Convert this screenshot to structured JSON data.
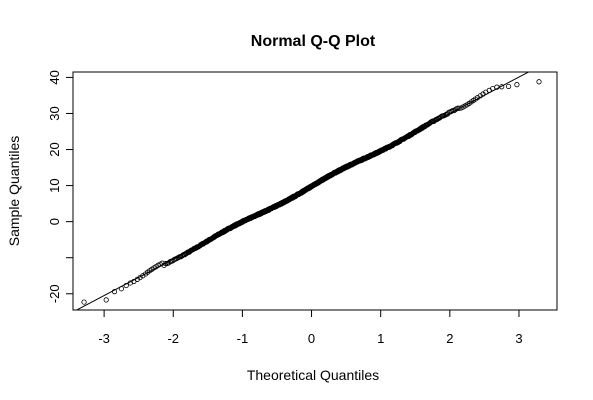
{
  "chart_data": {
    "type": "scatter",
    "title": "Normal Q-Q Plot",
    "xlabel": "Theoretical Quantiles",
    "ylabel": "Sample Quantiles",
    "xlim": [
      -3.45,
      3.55
    ],
    "ylim": [
      -24.5,
      41.5
    ],
    "x_ticks": [
      -3,
      -2,
      -1,
      0,
      1,
      2,
      3
    ],
    "x_tick_labels": [
      "-3",
      "-2",
      "-1",
      "0",
      "1",
      "2",
      "3"
    ],
    "y_ticks": [
      -20,
      0,
      10,
      20,
      30,
      40
    ],
    "y_tick_labels": [
      "-20",
      "0",
      "10",
      "20",
      "30",
      "40"
    ],
    "y_unlabeled_ticks": [
      -10
    ],
    "grid": false,
    "legend": "none",
    "reference_line": {
      "slope": 10.1,
      "intercept": 9.8
    },
    "n_points": 1000,
    "tail_points": [
      [
        -3.29,
        -22.3
      ],
      [
        -2.97,
        -21.7
      ],
      [
        -2.85,
        -19.4
      ],
      [
        -2.75,
        -18.6
      ],
      [
        -2.68,
        -17.7
      ],
      [
        -2.62,
        -17.0
      ],
      [
        -2.57,
        -16.6
      ],
      [
        -2.52,
        -16.0
      ],
      [
        -2.48,
        -15.5
      ],
      [
        -2.44,
        -15.0
      ],
      [
        -2.4,
        -14.5
      ],
      [
        -2.37,
        -14.0
      ],
      [
        -2.34,
        -13.6
      ],
      [
        -2.31,
        -13.2
      ],
      [
        -2.28,
        -12.8
      ],
      [
        -2.25,
        -12.5
      ],
      [
        -2.22,
        -12.1
      ],
      [
        -2.19,
        -11.8
      ],
      [
        -2.16,
        -11.5
      ],
      [
        2.16,
        31.5
      ],
      [
        2.19,
        31.8
      ],
      [
        2.22,
        32.1
      ],
      [
        2.25,
        32.4
      ],
      [
        2.28,
        32.8
      ],
      [
        2.31,
        33.2
      ],
      [
        2.34,
        33.6
      ],
      [
        2.37,
        34.0
      ],
      [
        2.4,
        34.4
      ],
      [
        2.44,
        34.9
      ],
      [
        2.48,
        35.4
      ],
      [
        2.52,
        35.9
      ],
      [
        2.57,
        36.4
      ],
      [
        2.62,
        36.9
      ],
      [
        2.68,
        37.3
      ],
      [
        2.75,
        37.4
      ],
      [
        2.85,
        37.5
      ],
      [
        2.97,
        38.0
      ],
      [
        3.29,
        38.8
      ]
    ],
    "body_range": [
      -2.15,
      2.15
    ],
    "colors": {
      "points": "#000000",
      "line": "#000000",
      "axes": "#000000"
    }
  }
}
